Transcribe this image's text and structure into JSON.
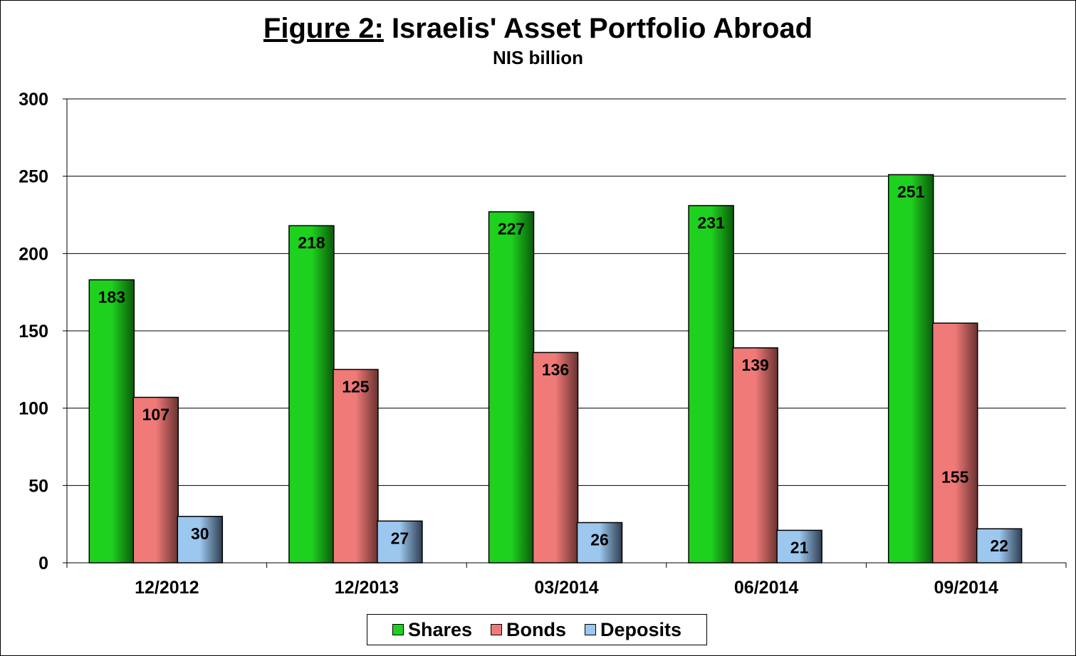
{
  "title_lead": "Figure 2:",
  "title_rest": " Israelis' Asset Portfolio Abroad",
  "subtitle": "NIS billion",
  "colors": {
    "shares": "#1fd11f",
    "bonds": "#f07a78",
    "deposits": "#9cc7ee"
  },
  "chart_data": {
    "type": "bar",
    "title": "Figure 2: Israelis' Asset Portfolio Abroad",
    "subtitle": "NIS billion",
    "categories": [
      "12/2012",
      "12/2013",
      "03/2014",
      "06/2014",
      "09/2014"
    ],
    "series": [
      {
        "name": "Shares",
        "values": [
          183,
          218,
          227,
          231,
          251
        ]
      },
      {
        "name": "Bonds",
        "values": [
          107,
          125,
          136,
          139,
          155
        ]
      },
      {
        "name": "Deposits",
        "values": [
          30,
          27,
          26,
          21,
          22
        ]
      }
    ],
    "yticks": [
      0,
      50,
      100,
      150,
      200,
      250,
      300
    ],
    "ylim": [
      0,
      300
    ],
    "grid": true,
    "legend": "bottom"
  }
}
